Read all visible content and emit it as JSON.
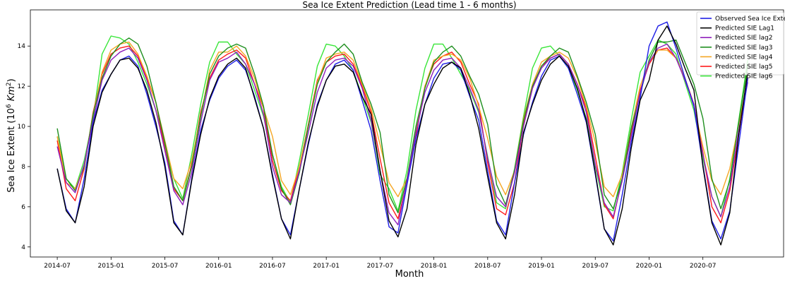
{
  "chart_data": {
    "type": "line",
    "title": "Sea Ice Extent Prediction (Lead time 1 - 6 months)",
    "xlabel": "Month",
    "ylabel_main": "Sea Ice Extent (10",
    "ylabel_sup1": "6",
    "ylabel_mid": " Km",
    "ylabel_sup2": "2",
    "ylabel_end": ")",
    "xlim": [
      "2014-04",
      "2021-04"
    ],
    "ylim": [
      3.5,
      15.8
    ],
    "xticks": [
      "2014-07",
      "2015-01",
      "2015-07",
      "2016-01",
      "2016-07",
      "2017-01",
      "2017-07",
      "2018-01",
      "2018-07",
      "2019-01",
      "2019-07",
      "2020-01",
      "2020-07"
    ],
    "yticks": [
      4,
      6,
      8,
      10,
      12,
      14
    ],
    "legend_position": "top-right",
    "x": [
      "2014-07",
      "2014-08",
      "2014-09",
      "2014-10",
      "2014-11",
      "2014-12",
      "2015-01",
      "2015-02",
      "2015-03",
      "2015-04",
      "2015-05",
      "2015-06",
      "2015-07",
      "2015-08",
      "2015-09",
      "2015-10",
      "2015-11",
      "2015-12",
      "2016-01",
      "2016-02",
      "2016-03",
      "2016-04",
      "2016-05",
      "2016-06",
      "2016-07",
      "2016-08",
      "2016-09",
      "2016-10",
      "2016-11",
      "2016-12",
      "2017-01",
      "2017-02",
      "2017-03",
      "2017-04",
      "2017-05",
      "2017-06",
      "2017-07",
      "2017-08",
      "2017-09",
      "2017-10",
      "2017-11",
      "2017-12",
      "2018-01",
      "2018-02",
      "2018-03",
      "2018-04",
      "2018-05",
      "2018-06",
      "2018-07",
      "2018-08",
      "2018-09",
      "2018-10",
      "2018-11",
      "2018-12",
      "2019-01",
      "2019-02",
      "2019-03",
      "2019-04",
      "2019-05",
      "2019-06",
      "2019-07",
      "2019-08",
      "2019-09",
      "2019-10",
      "2019-11",
      "2019-12",
      "2020-01",
      "2020-02",
      "2020-03",
      "2020-04",
      "2020-05",
      "2020-06",
      "2020-07",
      "2020-08",
      "2020-09",
      "2020-10",
      "2020-11",
      "2020-12"
    ],
    "series": [
      {
        "name": "Observed Sea Ice Extent",
        "color": "#1f1fe6",
        "values": [
          7.9,
          5.9,
          5.2,
          7.4,
          10.2,
          11.8,
          12.6,
          13.3,
          13.5,
          13.0,
          11.6,
          10.0,
          8.2,
          5.3,
          4.6,
          7.4,
          9.8,
          11.3,
          12.4,
          13.0,
          13.3,
          12.8,
          11.5,
          9.9,
          7.6,
          5.4,
          4.6,
          6.9,
          9.1,
          11.1,
          12.3,
          13.1,
          13.3,
          12.8,
          11.3,
          9.8,
          7.3,
          5.0,
          4.7,
          7.1,
          9.4,
          11.1,
          12.4,
          13.1,
          13.2,
          12.8,
          11.5,
          10.3,
          7.8,
          5.3,
          4.6,
          7.2,
          9.6,
          11.2,
          12.5,
          13.3,
          13.5,
          12.9,
          11.6,
          10.2,
          7.6,
          4.9,
          4.3,
          6.6,
          9.2,
          11.4,
          14.0,
          15.0,
          15.2,
          13.9,
          12.4,
          11.0,
          8.1,
          5.3,
          4.4,
          5.8,
          9.1,
          12.4
        ]
      },
      {
        "name": "Predicted SIE Lag1",
        "color": "#000000",
        "values": [
          7.9,
          5.8,
          5.2,
          7.0,
          10.0,
          11.7,
          12.6,
          13.3,
          13.4,
          12.9,
          11.8,
          10.2,
          8.0,
          5.2,
          4.6,
          7.3,
          9.6,
          11.4,
          12.5,
          13.1,
          13.4,
          12.9,
          11.4,
          9.9,
          7.5,
          5.4,
          4.4,
          6.9,
          9.2,
          11.0,
          12.3,
          13.0,
          13.1,
          12.7,
          11.5,
          10.6,
          7.8,
          5.3,
          4.5,
          5.9,
          9.1,
          11.1,
          12.1,
          12.9,
          13.2,
          12.9,
          11.6,
          9.9,
          7.5,
          5.2,
          4.4,
          6.6,
          9.7,
          11.1,
          12.3,
          13.1,
          13.5,
          13.0,
          11.9,
          10.3,
          7.7,
          4.9,
          4.1,
          5.9,
          8.9,
          11.3,
          12.3,
          14.3,
          15.0,
          14.1,
          12.9,
          11.8,
          8.0,
          5.2,
          4.1,
          5.7,
          9.6,
          12.7
        ]
      },
      {
        "name": "Predicted SIE lag2",
        "color": "#8e1fbb",
        "values": [
          9.0,
          7.2,
          6.7,
          8.1,
          10.3,
          12.3,
          13.3,
          13.7,
          13.9,
          13.4,
          12.3,
          10.8,
          8.8,
          6.8,
          6.1,
          7.7,
          10.2,
          12.3,
          13.2,
          13.4,
          13.7,
          13.1,
          12.1,
          10.6,
          8.0,
          6.6,
          6.2,
          7.8,
          9.7,
          11.7,
          12.9,
          13.3,
          13.4,
          13.0,
          11.9,
          10.3,
          7.8,
          5.7,
          5.1,
          7.3,
          9.7,
          11.7,
          12.8,
          13.3,
          13.4,
          12.9,
          11.9,
          10.8,
          8.4,
          6.5,
          6.0,
          7.7,
          10.0,
          11.9,
          12.9,
          13.4,
          13.6,
          13.1,
          12.1,
          10.7,
          8.1,
          6.2,
          5.5,
          7.3,
          9.5,
          11.7,
          13.2,
          13.9,
          14.1,
          13.4,
          12.3,
          11.1,
          8.6,
          6.5,
          5.5,
          7.0,
          9.8,
          12.2
        ]
      },
      {
        "name": "Predicted SIE lag3",
        "color": "#1f8f1f",
        "values": [
          9.9,
          7.4,
          6.8,
          8.0,
          10.6,
          12.4,
          13.5,
          14.1,
          14.4,
          14.1,
          13.0,
          11.2,
          9.2,
          7.0,
          6.3,
          8.0,
          10.5,
          12.6,
          13.5,
          13.9,
          14.1,
          13.9,
          12.6,
          11.0,
          8.6,
          6.9,
          6.1,
          7.7,
          10.0,
          12.1,
          13.2,
          13.7,
          14.1,
          13.6,
          12.2,
          11.1,
          9.7,
          6.6,
          5.7,
          7.4,
          10.0,
          11.9,
          13.2,
          13.7,
          14.0,
          13.5,
          12.5,
          11.6,
          10.1,
          7.1,
          6.1,
          7.8,
          10.3,
          12.0,
          13.0,
          13.5,
          13.9,
          13.7,
          12.5,
          11.2,
          9.6,
          6.6,
          5.9,
          7.4,
          9.9,
          11.6,
          13.3,
          14.2,
          14.2,
          14.3,
          13.2,
          12.1,
          10.4,
          7.4,
          5.9,
          7.3,
          10.2,
          13.0
        ]
      },
      {
        "name": "Predicted SIE lag4",
        "color": "#f5a623",
        "values": [
          9.5,
          7.2,
          6.9,
          8.0,
          10.6,
          12.7,
          13.8,
          14.1,
          14.2,
          13.6,
          12.5,
          11.2,
          9.3,
          7.4,
          6.9,
          8.3,
          10.5,
          12.8,
          13.7,
          13.7,
          14.0,
          13.5,
          12.4,
          10.9,
          9.5,
          7.3,
          6.6,
          8.0,
          10.0,
          12.2,
          13.4,
          13.6,
          13.7,
          13.3,
          12.1,
          10.9,
          9.1,
          7.2,
          6.5,
          7.4,
          9.8,
          12.0,
          13.3,
          13.5,
          13.6,
          13.3,
          12.4,
          11.0,
          9.4,
          7.5,
          6.6,
          7.8,
          10.4,
          12.1,
          13.2,
          13.5,
          13.7,
          13.4,
          12.4,
          11.0,
          9.2,
          7.0,
          6.5,
          7.6,
          9.9,
          12.0,
          13.2,
          13.8,
          13.8,
          13.4,
          12.4,
          11.0,
          9.0,
          7.3,
          6.6,
          7.9,
          10.1,
          12.3
        ]
      },
      {
        "name": "Predicted SIE lag5",
        "color": "#ff1a1a",
        "values": [
          9.3,
          6.9,
          6.3,
          7.9,
          10.7,
          12.6,
          13.6,
          13.9,
          14.0,
          13.5,
          12.4,
          11.2,
          8.9,
          6.9,
          6.3,
          8.1,
          10.7,
          12.4,
          13.3,
          13.6,
          13.8,
          13.4,
          12.1,
          10.9,
          8.3,
          6.8,
          6.3,
          8.0,
          10.1,
          12.3,
          13.2,
          13.5,
          13.6,
          13.1,
          12.0,
          10.7,
          8.4,
          6.2,
          5.4,
          7.2,
          9.5,
          12.0,
          13.1,
          13.5,
          13.7,
          13.2,
          12.1,
          11.1,
          8.2,
          5.9,
          5.6,
          7.2,
          10.1,
          11.9,
          13.0,
          13.4,
          13.6,
          13.1,
          12.1,
          10.9,
          8.5,
          6.1,
          5.4,
          7.4,
          9.7,
          11.8,
          13.1,
          13.8,
          13.9,
          13.4,
          12.4,
          11.1,
          8.7,
          6.0,
          5.2,
          6.8,
          9.6,
          12.4
        ]
      },
      {
        "name": "Predicted SIE lag6",
        "color": "#39e639",
        "values": [
          9.5,
          7.4,
          6.9,
          8.3,
          10.4,
          13.6,
          14.5,
          14.4,
          14.1,
          13.2,
          12.1,
          10.8,
          9.1,
          7.4,
          6.4,
          8.6,
          11.1,
          13.2,
          14.2,
          14.2,
          13.6,
          13.1,
          11.8,
          10.5,
          8.6,
          7.0,
          6.2,
          8.3,
          10.6,
          13.0,
          14.1,
          14.0,
          13.5,
          12.8,
          11.5,
          10.2,
          7.6,
          6.9,
          5.8,
          7.8,
          10.8,
          12.9,
          14.1,
          14.1,
          13.4,
          12.6,
          11.8,
          10.7,
          8.5,
          6.2,
          5.9,
          7.9,
          10.5,
          12.9,
          13.9,
          14.0,
          13.5,
          12.9,
          11.8,
          10.4,
          8.0,
          6.0,
          5.8,
          7.7,
          10.3,
          12.7,
          13.5,
          14.3,
          14.1,
          13.6,
          12.2,
          10.8,
          8.4,
          6.5,
          5.5,
          7.4,
          10.3,
          13.3
        ]
      }
    ]
  }
}
